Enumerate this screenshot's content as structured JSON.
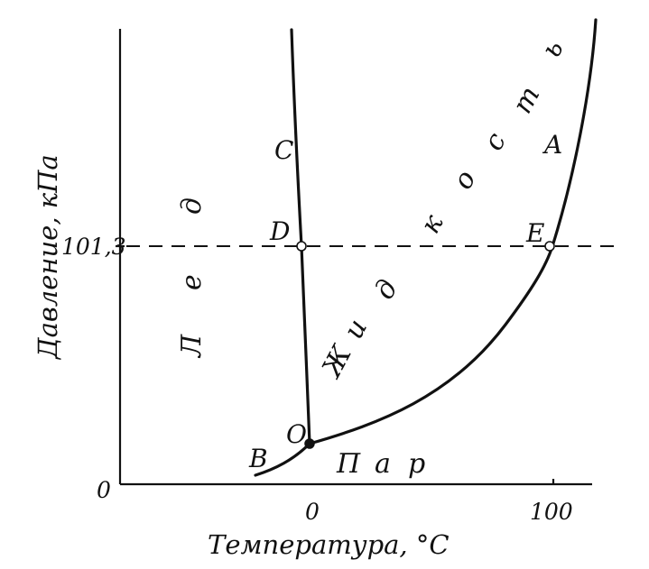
{
  "diagram": {
    "type": "phase-diagram",
    "axes": {
      "x_label": "Температура, °С",
      "y_label": "Давление, кПа",
      "x_ticks": [
        "0",
        "100"
      ],
      "y_ticks": [
        "0",
        "101,3"
      ]
    },
    "regions": {
      "ice_letters": [
        "Л",
        "е",
        "д"
      ],
      "liquid_letters": [
        "Ж",
        "и",
        "д",
        "к",
        "о",
        "с",
        "т",
        "ь"
      ],
      "vapor_letters": [
        "П",
        "а",
        "р"
      ]
    },
    "points": {
      "C": "C",
      "D": "D",
      "A": "A",
      "E": "E",
      "O": "O",
      "B": "B"
    },
    "curves": [
      "OC",
      "OA",
      "OB"
    ],
    "reference_line": "101,3"
  }
}
